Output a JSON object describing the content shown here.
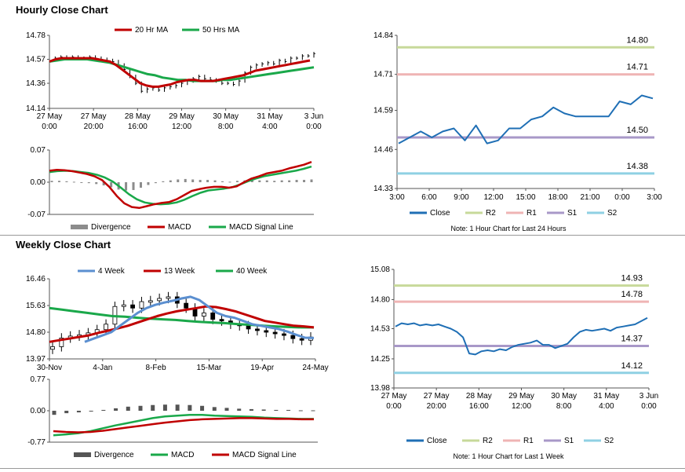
{
  "sections": {
    "hourly_title": "Hourly Close Chart",
    "weekly_title": "Weekly Close Chart"
  },
  "colors": {
    "price": "#000000",
    "ma_red": "#c00000",
    "ma_green": "#1aa84a",
    "ma_blue": "#5b8fd0",
    "divergence": "#8c8c8c",
    "close_line": "#1f6fb5",
    "r2": "#c7d99a",
    "r1": "#efb4b4",
    "s1": "#a898c8",
    "s2": "#8fd0e3",
    "rule": "#9a9a9a"
  },
  "chart_data": [
    {
      "id": "hourly_price",
      "type": "line",
      "title": "",
      "ylim": [
        14.14,
        14.78
      ],
      "yticks": [
        "14.78",
        "14.57",
        "14.36",
        "14.14"
      ],
      "xticks": [
        [
          "27 May",
          "0:00"
        ],
        [
          "27 May",
          "20:00"
        ],
        [
          "28 May",
          "16:00"
        ],
        [
          "29 May",
          "12:00"
        ],
        [
          "30 May",
          "8:00"
        ],
        [
          "31 May",
          "4:00"
        ],
        [
          "3 Jun",
          "0:00"
        ]
      ],
      "legend": [
        "20 Hr MA",
        "50 Hrs MA"
      ],
      "series": [
        {
          "name": "Close",
          "values": [
            14.57,
            14.58,
            14.59,
            14.58,
            14.59,
            14.58,
            14.58,
            14.59,
            14.58,
            14.57,
            14.56,
            14.55,
            14.52,
            14.48,
            14.42,
            14.36,
            14.29,
            14.31,
            14.32,
            14.3,
            14.32,
            14.33,
            14.34,
            14.36,
            14.38,
            14.4,
            14.42,
            14.4,
            14.39,
            14.38,
            14.36,
            14.36,
            14.35,
            14.38,
            14.45,
            14.5,
            14.52,
            14.53,
            14.54,
            14.53,
            14.56,
            14.55,
            14.58,
            14.58,
            14.6,
            14.6,
            14.62
          ]
        },
        {
          "name": "20 Hr MA",
          "values": [
            14.55,
            14.57,
            14.58,
            14.58,
            14.58,
            14.58,
            14.58,
            14.58,
            14.57,
            14.56,
            14.55,
            14.52,
            14.48,
            14.44,
            14.4,
            14.36,
            14.34,
            14.33,
            14.33,
            14.34,
            14.35,
            14.37,
            14.38,
            14.39,
            14.39,
            14.38,
            14.38,
            14.38,
            14.39,
            14.4,
            14.41,
            14.42,
            14.43,
            14.45,
            14.47,
            14.48,
            14.49,
            14.5,
            14.51,
            14.52,
            14.53,
            14.54,
            14.55,
            14.56
          ]
        },
        {
          "name": "50 Hrs MA",
          "values": [
            14.55,
            14.56,
            14.57,
            14.57,
            14.57,
            14.57,
            14.56,
            14.55,
            14.54,
            14.52,
            14.5,
            14.48,
            14.46,
            14.44,
            14.43,
            14.41,
            14.4,
            14.39,
            14.39,
            14.38,
            14.38,
            14.38,
            14.38,
            14.39,
            14.39,
            14.4,
            14.41,
            14.42,
            14.43,
            14.44,
            14.45,
            14.46,
            14.47,
            14.48,
            14.49,
            14.5
          ]
        }
      ]
    },
    {
      "id": "hourly_macd",
      "type": "line",
      "ylim": [
        -0.07,
        0.07
      ],
      "yticks": [
        "0.07",
        "0.00",
        "-0.07"
      ],
      "legend": [
        "Divergence",
        "MACD",
        "MACD Signal Line"
      ],
      "series": [
        {
          "name": "MACD",
          "values": [
            0.025,
            0.027,
            0.026,
            0.024,
            0.021,
            0.018,
            0.013,
            0.005,
            -0.01,
            -0.03,
            -0.046,
            -0.054,
            -0.056,
            -0.052,
            -0.048,
            -0.045,
            -0.043,
            -0.037,
            -0.028,
            -0.019,
            -0.015,
            -0.012,
            -0.01,
            -0.01,
            -0.012,
            -0.009,
            0.0,
            0.008,
            0.013,
            0.019,
            0.022,
            0.025,
            0.03,
            0.034,
            0.038,
            0.044
          ]
        },
        {
          "name": "MACD Signal Line",
          "values": [
            0.022,
            0.024,
            0.025,
            0.024,
            0.022,
            0.02,
            0.016,
            0.01,
            0.001,
            -0.012,
            -0.026,
            -0.037,
            -0.044,
            -0.047,
            -0.048,
            -0.047,
            -0.044,
            -0.038,
            -0.03,
            -0.023,
            -0.018,
            -0.016,
            -0.014,
            -0.011,
            -0.005,
            0.002,
            0.008,
            0.013,
            0.016,
            0.019,
            0.022,
            0.025,
            0.029,
            0.034
          ]
        },
        {
          "name": "Divergence",
          "values": [
            0.003,
            0.003,
            0.002,
            0.001,
            -0.001,
            -0.002,
            -0.004,
            -0.007,
            -0.011,
            -0.016,
            -0.018,
            -0.017,
            -0.012,
            -0.006,
            -0.002,
            0.002,
            0.004,
            0.006,
            0.007,
            0.006,
            0.005,
            0.005,
            0.004,
            0.002,
            0.001,
            0.003,
            0.004,
            0.005,
            0.004,
            0.004,
            0.003,
            0.004,
            0.004,
            0.005,
            0.005,
            0.006
          ]
        }
      ]
    },
    {
      "id": "hourly_24h",
      "type": "line",
      "ylim": [
        14.33,
        14.84
      ],
      "yticks": [
        "14.84",
        "14.71",
        "14.59",
        "14.46",
        "14.33"
      ],
      "xticks": [
        "3:00",
        "6:00",
        "9:00",
        "12:00",
        "15:00",
        "18:00",
        "21:00",
        "0:00",
        "3:00"
      ],
      "levels": [
        {
          "name": "R2",
          "value": 14.8,
          "label": "14.80"
        },
        {
          "name": "R1",
          "value": 14.71,
          "label": "14.71"
        },
        {
          "name": "S1",
          "value": 14.5,
          "label": "14.50"
        },
        {
          "name": "S2",
          "value": 14.38,
          "label": "14.38"
        }
      ],
      "legend": [
        "Close",
        "R2",
        "R1",
        "S1",
        "S2"
      ],
      "note": "Note: 1 Hour Chart for Last 24 Hours",
      "series": [
        {
          "name": "Close",
          "values": [
            14.48,
            14.5,
            14.52,
            14.5,
            14.52,
            14.53,
            14.49,
            14.54,
            14.48,
            14.49,
            14.53,
            14.53,
            14.56,
            14.57,
            14.6,
            14.58,
            14.57,
            14.57,
            14.57,
            14.57,
            14.62,
            14.61,
            14.64,
            14.63
          ]
        }
      ]
    },
    {
      "id": "weekly_price",
      "type": "line",
      "ylim": [
        13.97,
        16.46
      ],
      "yticks": [
        "16.46",
        "15.63",
        "14.80",
        "13.97"
      ],
      "xticks": [
        "30-Nov",
        "4-Jan",
        "8-Feb",
        "15-Mar",
        "19-Apr",
        "24-May"
      ],
      "legend": [
        "4 Week",
        "13 Week",
        "40 Week"
      ],
      "series": [
        {
          "name": "Close",
          "values": [
            14.35,
            14.62,
            14.68,
            14.72,
            14.78,
            14.88,
            15.05,
            15.6,
            15.65,
            15.55,
            15.75,
            15.78,
            15.85,
            15.9,
            15.7,
            15.55,
            15.3,
            15.4,
            15.2,
            15.15,
            15.05,
            15.0,
            14.9,
            14.85,
            14.8,
            14.75,
            14.7,
            14.6,
            14.55,
            14.65
          ]
        },
        {
          "name": "4 Week",
          "values": [
            14.5,
            14.6,
            14.7,
            14.8,
            15.0,
            15.2,
            15.4,
            15.55,
            15.65,
            15.72,
            15.78,
            15.85,
            15.9,
            15.8,
            15.6,
            15.4,
            15.3,
            15.25,
            15.15,
            15.05,
            15.0,
            14.95,
            14.9,
            14.82,
            14.72,
            14.63,
            14.62
          ]
        },
        {
          "name": "13 Week",
          "values": [
            14.5,
            14.55,
            14.6,
            14.65,
            14.7,
            14.78,
            14.85,
            14.92,
            15.0,
            15.1,
            15.2,
            15.3,
            15.38,
            15.45,
            15.5,
            15.55,
            15.6,
            15.58,
            15.52,
            15.45,
            15.35,
            15.25,
            15.15,
            15.1,
            15.05,
            15.0,
            14.98,
            14.95
          ]
        },
        {
          "name": "40 Week",
          "values": [
            15.55,
            15.5,
            15.45,
            15.4,
            15.35,
            15.3,
            15.28,
            15.25,
            15.22,
            15.2,
            15.18,
            15.15,
            15.12,
            15.1,
            15.08,
            15.05,
            15.03,
            15.0,
            14.98,
            14.96,
            14.95,
            14.95
          ]
        }
      ]
    },
    {
      "id": "weekly_macd",
      "type": "line",
      "ylim": [
        -0.77,
        0.77
      ],
      "yticks": [
        "0.77",
        "0.00",
        "-0.77"
      ],
      "legend": [
        "Divergence",
        "MACD",
        "MACD Signal Line"
      ],
      "series": [
        {
          "name": "MACD",
          "values": [
            -0.6,
            -0.58,
            -0.55,
            -0.5,
            -0.43,
            -0.36,
            -0.3,
            -0.24,
            -0.18,
            -0.14,
            -0.12,
            -0.1,
            -0.1,
            -0.12,
            -0.13,
            -0.14,
            -0.15,
            -0.17,
            -0.18,
            -0.19,
            -0.2,
            -0.2
          ]
        },
        {
          "name": "MACD Signal Line",
          "values": [
            -0.5,
            -0.52,
            -0.53,
            -0.52,
            -0.49,
            -0.45,
            -0.41,
            -0.37,
            -0.33,
            -0.29,
            -0.26,
            -0.23,
            -0.21,
            -0.2,
            -0.19,
            -0.18,
            -0.18,
            -0.19,
            -0.2,
            -0.2,
            -0.21,
            -0.21
          ]
        },
        {
          "name": "Divergence",
          "values": [
            -0.1,
            -0.06,
            -0.04,
            -0.02,
            0.02,
            0.06,
            0.1,
            0.12,
            0.14,
            0.15,
            0.15,
            0.14,
            0.12,
            0.09,
            0.07,
            0.05,
            0.04,
            0.03,
            0.02,
            0.02,
            0.01,
            0.01
          ]
        }
      ]
    },
    {
      "id": "weekly_1w",
      "type": "line",
      "ylim": [
        13.98,
        15.08
      ],
      "yticks": [
        "15.08",
        "14.80",
        "14.53",
        "14.25",
        "13.98"
      ],
      "xticks": [
        [
          "27 May",
          "0:00"
        ],
        [
          "27 May",
          "20:00"
        ],
        [
          "28 May",
          "16:00"
        ],
        [
          "29 May",
          "12:00"
        ],
        [
          "30 May",
          "8:00"
        ],
        [
          "31 May",
          "4:00"
        ],
        [
          "3 Jun",
          "0:00"
        ]
      ],
      "levels": [
        {
          "name": "R2",
          "value": 14.93,
          "label": "14.93"
        },
        {
          "name": "R1",
          "value": 14.78,
          "label": "14.78"
        },
        {
          "name": "S1",
          "value": 14.37,
          "label": "14.37"
        },
        {
          "name": "S2",
          "value": 14.12,
          "label": "14.12"
        }
      ],
      "legend": [
        "Close",
        "R2",
        "R1",
        "S1",
        "S2"
      ],
      "note": "Note: 1 Hour Chart for Last 1 Week",
      "series": [
        {
          "name": "Close",
          "values": [
            14.55,
            14.58,
            14.57,
            14.58,
            14.56,
            14.57,
            14.56,
            14.57,
            14.55,
            14.53,
            14.5,
            14.45,
            14.3,
            14.29,
            14.32,
            14.33,
            14.32,
            14.34,
            14.33,
            14.36,
            14.38,
            14.39,
            14.4,
            14.42,
            14.38,
            14.38,
            14.35,
            14.37,
            14.39,
            14.45,
            14.5,
            14.52,
            14.51,
            14.52,
            14.53,
            14.51,
            14.54,
            14.55,
            14.56,
            14.57,
            14.6,
            14.63
          ]
        }
      ]
    }
  ]
}
